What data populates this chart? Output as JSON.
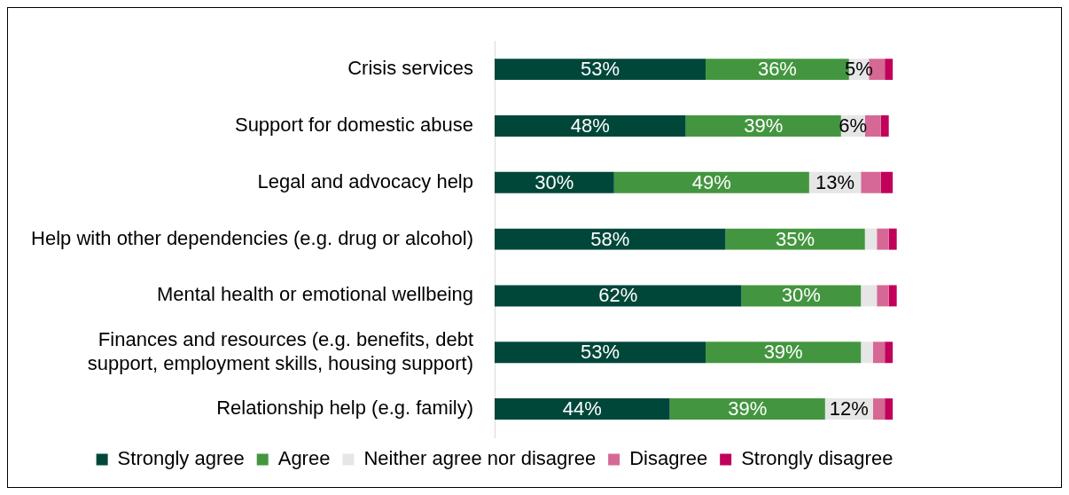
{
  "chart_data": {
    "type": "bar",
    "orientation": "horizontal",
    "stacked": true,
    "legend": "bottom",
    "categories": [
      "Crisis services",
      "Support for domestic abuse",
      "Legal and advocacy help",
      "Help with other dependencies (e.g. drug or alcohol)",
      "Mental health or emotional wellbeing",
      "Finances and resources (e.g. benefits, debt support, employment skills, housing support)",
      "Relationship help (e.g. family)"
    ],
    "series": [
      {
        "name": "Strongly agree",
        "color": "#00473a",
        "values": [
          53,
          48,
          30,
          58,
          62,
          53,
          44
        ],
        "value_labels": [
          "53%",
          "48%",
          "30%",
          "58%",
          "62%",
          "53%",
          "44%"
        ]
      },
      {
        "name": "Agree",
        "color": "#43963f",
        "values": [
          36,
          39,
          49,
          35,
          30,
          39,
          39
        ],
        "value_labels": [
          "36%",
          "39%",
          "49%",
          "35%",
          "30%",
          "39%",
          "39%"
        ]
      },
      {
        "name": "Neither agree nor disagree",
        "color": "#e6e6e6",
        "values": [
          5,
          6,
          13,
          3,
          4,
          3,
          12
        ],
        "value_labels": [
          "5%",
          "6%",
          "13%",
          null,
          null,
          null,
          "12%"
        ]
      },
      {
        "name": "Disagree",
        "color": "#d66895",
        "values": [
          4,
          4,
          5,
          3,
          3,
          3,
          3
        ]
      },
      {
        "name": "Strongly disagree",
        "color": "#c0005a",
        "values": [
          2,
          2,
          3,
          2,
          2,
          2,
          2
        ]
      }
    ]
  }
}
